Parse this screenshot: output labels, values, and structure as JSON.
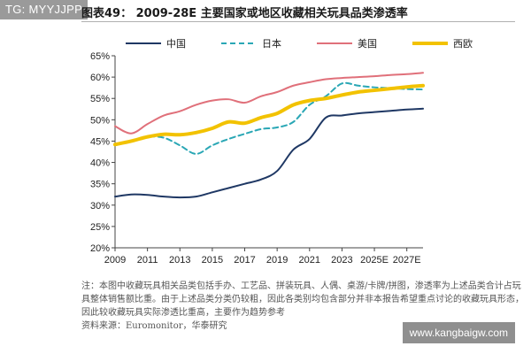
{
  "watermark_top": "TG: MYYJJPP",
  "watermark_bottom": "www.kangbaigw.com",
  "note_text": "注：本图中收藏玩具相关品类包括手办、工艺品、拼装玩具、人偶、桌游/卡牌/拼图，渗透率为上述品类合计占玩具整体销售额比重。由于上述品类分类仍较粗，因此各类别均包含部分并非本报告希望重点讨论的收藏玩具形态，因此较收藏玩具实际渗透比重高，主要作为趋势参考",
  "source_text": "资料来源：Euromonitor，华泰研究",
  "chart_data": {
    "type": "line",
    "title": "图表49：  2009-28E 主要国家或地区收藏相关玩具品类渗透率",
    "xlabel": "",
    "ylabel": "",
    "x": [
      2009,
      2010,
      2011,
      2012,
      2013,
      2014,
      2015,
      2016,
      2017,
      2018,
      2019,
      2020,
      2021,
      2022,
      2023,
      2024,
      2025,
      2026,
      2027,
      2028
    ],
    "x_tick_labels": [
      "2009",
      "2011",
      "2013",
      "2015",
      "2017",
      "2019",
      "2021",
      "2023",
      "2025E",
      "2027E"
    ],
    "ylim": [
      0.2,
      0.65
    ],
    "y_ticks": [
      0.2,
      0.25,
      0.3,
      0.35,
      0.4,
      0.45,
      0.5,
      0.55,
      0.6,
      0.65
    ],
    "y_tick_labels": [
      "20%",
      "25%",
      "30%",
      "35%",
      "40%",
      "45%",
      "50%",
      "55%",
      "60%",
      "65%"
    ],
    "grid": false,
    "legend_position": "top",
    "series": [
      {
        "name": "中国",
        "color": "#1f3864",
        "style": "solid",
        "values": [
          0.32,
          0.325,
          0.324,
          0.32,
          0.318,
          0.32,
          0.33,
          0.34,
          0.35,
          0.36,
          0.38,
          0.43,
          0.455,
          0.505,
          0.51,
          0.515,
          0.518,
          0.521,
          0.524,
          0.526
        ]
      },
      {
        "name": "日本",
        "color": "#2aa7b5",
        "style": "dashed",
        "values": [
          0.44,
          0.45,
          0.46,
          0.458,
          0.44,
          0.42,
          0.44,
          0.455,
          0.467,
          0.478,
          0.482,
          0.495,
          0.535,
          0.555,
          0.585,
          0.58,
          0.576,
          0.574,
          0.572,
          0.571
        ]
      },
      {
        "name": "美国",
        "color": "#e0707a",
        "style": "solid",
        "values": [
          0.485,
          0.468,
          0.49,
          0.51,
          0.52,
          0.535,
          0.545,
          0.548,
          0.54,
          0.555,
          0.565,
          0.58,
          0.588,
          0.595,
          0.598,
          0.6,
          0.602,
          0.605,
          0.607,
          0.61
        ]
      },
      {
        "name": "西欧",
        "color": "#f2c200",
        "style": "solid",
        "values": [
          0.442,
          0.45,
          0.46,
          0.466,
          0.465,
          0.47,
          0.48,
          0.495,
          0.492,
          0.505,
          0.515,
          0.535,
          0.545,
          0.55,
          0.558,
          0.565,
          0.569,
          0.573,
          0.577,
          0.58
        ]
      }
    ]
  }
}
